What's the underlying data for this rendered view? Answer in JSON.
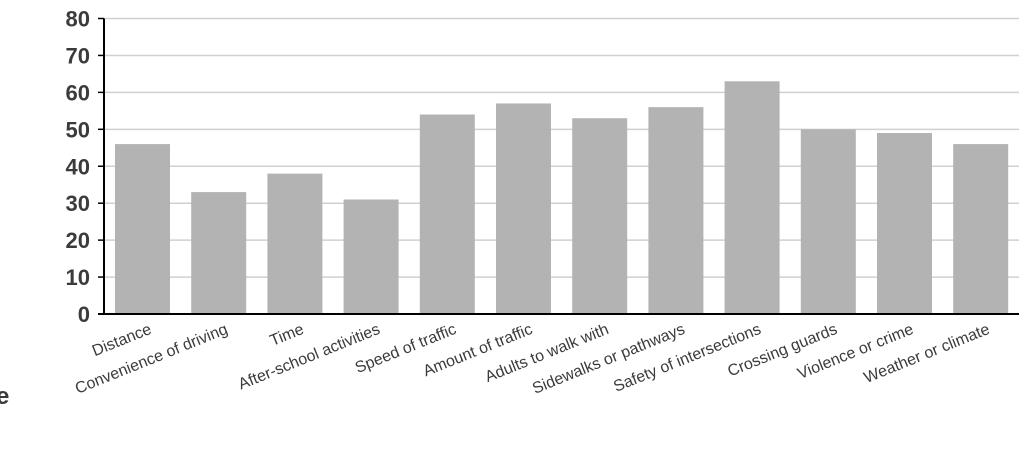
{
  "chart_data": {
    "type": "bar",
    "categories": [
      "Distance",
      "Convenience of driving",
      "Time",
      "After-school activities",
      "Speed of traffic",
      "Amount of traffic",
      "Adults to walk with",
      "Sidewalks or pathways",
      "Safety of intersections",
      "Crossing guards",
      "Violence or crime",
      "Weather or climate"
    ],
    "values": [
      46,
      33,
      38,
      31,
      54,
      57,
      53,
      56,
      63,
      50,
      49,
      46
    ],
    "yticks": [
      "0",
      "10",
      "20",
      "30",
      "40",
      "50",
      "60",
      "70",
      "80"
    ],
    "ylim": [
      0,
      80
    ],
    "grid": true,
    "colors": {
      "bar": "#b3b3b3",
      "grid": "#d0d0d0",
      "axis": "#000000",
      "text": "#3b3b3b"
    }
  },
  "cropped_label_fragment": "e"
}
